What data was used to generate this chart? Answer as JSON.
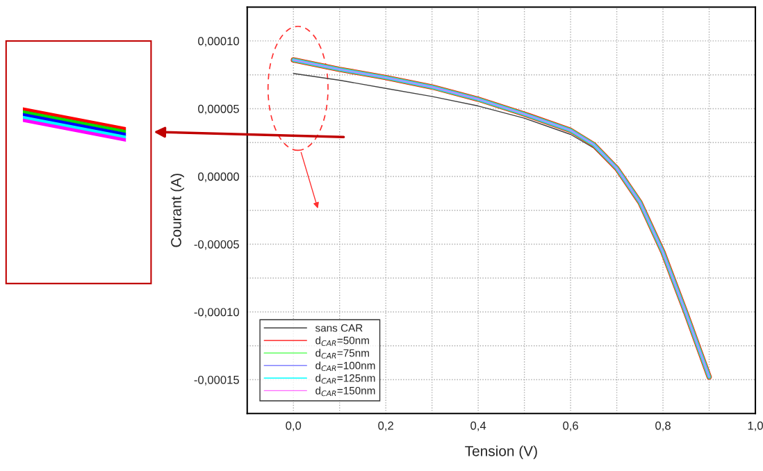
{
  "chart_data": {
    "type": "line",
    "xlabel": "Tension (V)",
    "ylabel": "Courant (A)",
    "x": [
      0.0,
      0.1,
      0.2,
      0.3,
      0.4,
      0.5,
      0.6,
      0.65,
      0.7,
      0.75,
      0.8,
      0.85,
      0.9
    ],
    "series": [
      {
        "name": "sans CAR",
        "color": "#404040",
        "values": [
          7.6e-05,
          7.1e-05,
          6.5e-05,
          5.9e-05,
          5.2e-05,
          4.3e-05,
          3.1e-05,
          2.1e-05,
          4e-06,
          -2.1e-05,
          -5.7e-05,
          -0.000102,
          -0.000149
        ]
      },
      {
        "name": "d$_{CAR}$=50nm",
        "color": "#ff0000",
        "values": [
          8.6e-05,
          7.9e-05,
          7.3e-05,
          6.6e-05,
          5.7e-05,
          4.6e-05,
          3.4e-05,
          2.35e-05,
          6e-06,
          -1.9e-05,
          -5.6e-05,
          -0.000101,
          -0.000148
        ]
      },
      {
        "name": "d$_{CAR}$=75nm",
        "color": "#40ff40",
        "values": [
          8.6e-05,
          7.9e-05,
          7.3e-05,
          6.6e-05,
          5.7e-05,
          4.6e-05,
          3.4e-05,
          2.35e-05,
          6e-06,
          -1.9e-05,
          -5.6e-05,
          -0.000101,
          -0.000148
        ]
      },
      {
        "name": "d$_{CAR}$=100nm",
        "color": "#8080ff",
        "values": [
          8.6e-05,
          7.9e-05,
          7.3e-05,
          6.6e-05,
          5.7e-05,
          4.6e-05,
          3.4e-05,
          2.35e-05,
          6e-06,
          -1.9e-05,
          -5.6e-05,
          -0.000101,
          -0.000148
        ]
      },
      {
        "name": "d$_{CAR}$=125nm",
        "color": "#00ffff",
        "values": [
          8.6e-05,
          7.9e-05,
          7.3e-05,
          6.6e-05,
          5.7e-05,
          4.6e-05,
          3.4e-05,
          2.35e-05,
          6e-06,
          -1.9e-05,
          -5.6e-05,
          -0.000101,
          -0.000148
        ]
      },
      {
        "name": "d$_{CAR}$=150nm",
        "color": "#ff66ff",
        "values": [
          8.6e-05,
          7.9e-05,
          7.3e-05,
          6.6e-05,
          5.7e-05,
          4.6e-05,
          3.4e-05,
          2.35e-05,
          6e-06,
          -1.9e-05,
          -5.6e-05,
          -0.000101,
          -0.000148
        ]
      }
    ],
    "xlim": [
      -0.1,
      1.0
    ],
    "xticks": [
      {
        "value": 0.0,
        "label": "0,0"
      },
      {
        "value": 0.1,
        "label": null
      },
      {
        "value": 0.2,
        "label": "0,2"
      },
      {
        "value": 0.3,
        "label": null
      },
      {
        "value": 0.4,
        "label": "0,4"
      },
      {
        "value": 0.5,
        "label": null
      },
      {
        "value": 0.6,
        "label": "0,6"
      },
      {
        "value": 0.7,
        "label": null
      },
      {
        "value": 0.8,
        "label": "0,8"
      },
      {
        "value": 0.9,
        "label": null
      },
      {
        "value": 1.0,
        "label": "1,0"
      }
    ],
    "ylim": [
      -0.000175,
      0.000125
    ],
    "yticks": [
      {
        "value": -0.00015,
        "label": "-0,00015"
      },
      {
        "value": -0.000125,
        "label": null
      },
      {
        "value": -0.0001,
        "label": "-0,00010"
      },
      {
        "value": -7.5e-05,
        "label": null
      },
      {
        "value": -5e-05,
        "label": "-0,00005"
      },
      {
        "value": -2.5e-05,
        "label": null
      },
      {
        "value": 0.0,
        "label": "0,00000"
      },
      {
        "value": 2.5e-05,
        "label": null
      },
      {
        "value": 5e-05,
        "label": "0,00005"
      },
      {
        "value": 7.5e-05,
        "label": null
      },
      {
        "value": 0.0001,
        "label": "0,00010"
      }
    ],
    "grid": true,
    "legend": "bottom left",
    "line_style": "solid",
    "marker": "none"
  }
}
